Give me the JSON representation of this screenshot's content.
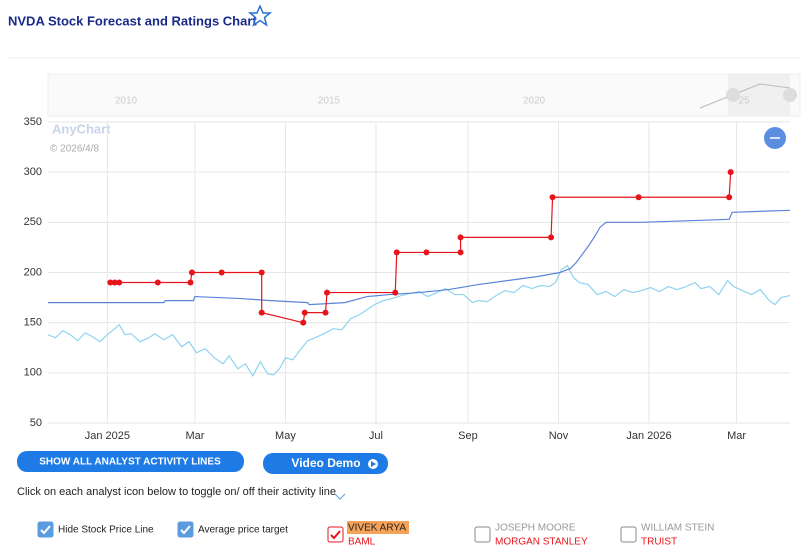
{
  "header": {
    "title": "NVDA Stock Forecast and Ratings Chart"
  },
  "navigator": {
    "labels": [
      "2010",
      "2015",
      "2020",
      "25"
    ]
  },
  "watermark": {
    "brand": "AnyChart",
    "date": "© 2026/4/8"
  },
  "chart_data": {
    "type": "line",
    "xlim": [
      0,
      500
    ],
    "xticks": [
      {
        "value": 40,
        "label": "Jan 2025"
      },
      {
        "value": 99,
        "label": "Mar"
      },
      {
        "value": 160,
        "label": "May"
      },
      {
        "value": 221,
        "label": "Jul"
      },
      {
        "value": 283,
        "label": "Sep"
      },
      {
        "value": 344,
        "label": "Nov"
      },
      {
        "value": 405,
        "label": "Jan 2026"
      },
      {
        "value": 464,
        "label": "Mar"
      }
    ],
    "ylim": [
      50,
      350
    ],
    "yticks": [
      50,
      100,
      150,
      200,
      250,
      300,
      350
    ],
    "grid": true,
    "series": [
      {
        "color": "#8fd3f0",
        "markers": false,
        "x": [
          0,
          5,
          10,
          15,
          20,
          25,
          30,
          35,
          40,
          45,
          48,
          52,
          56,
          62,
          68,
          72,
          78,
          84,
          90,
          95,
          100,
          106,
          112,
          118,
          122,
          128,
          133,
          138,
          143,
          148,
          152,
          156,
          160,
          165,
          170,
          175,
          180,
          186,
          192,
          198,
          204,
          210,
          216,
          220,
          226,
          232,
          238,
          244,
          250,
          256,
          262,
          268,
          274,
          280,
          286,
          290,
          296,
          302,
          308,
          314,
          320,
          326,
          332,
          338,
          342,
          346,
          350,
          354,
          358,
          364,
          370,
          376,
          382,
          388,
          394,
          400,
          406,
          412,
          418,
          424,
          430,
          436,
          440,
          446,
          452,
          458,
          462,
          468,
          474,
          480,
          486,
          490,
          494,
          500
        ],
        "values": [
          138,
          135,
          142,
          138,
          132,
          140,
          136,
          131,
          138,
          144,
          148,
          138,
          139,
          131,
          135,
          139,
          133,
          138,
          126,
          131,
          120,
          124,
          115,
          109,
          117,
          104,
          109,
          97,
          111,
          99,
          98,
          104,
          115,
          113,
          123,
          132,
          135,
          139,
          144,
          143,
          154,
          158,
          164,
          168,
          172,
          174,
          177,
          179,
          181,
          176,
          180,
          184,
          178,
          178,
          170,
          172,
          171,
          177,
          182,
          180,
          187,
          184,
          187,
          186,
          190,
          203,
          207,
          195,
          190,
          188,
          178,
          181,
          176,
          183,
          180,
          182,
          185,
          181,
          186,
          183,
          186,
          190,
          184,
          186,
          178,
          192,
          186,
          182,
          178,
          183,
          172,
          168,
          175,
          177
        ]
      },
      {
        "color": "#5b84d6",
        "markers": false,
        "x": [
          0,
          78,
          79,
          98,
          99,
          130,
          150,
          175,
          176,
          200,
          215,
          230,
          250,
          270,
          290,
          310,
          330,
          345,
          352,
          356,
          360,
          364,
          368,
          372,
          376,
          400,
          440,
          459,
          461,
          500
        ],
        "values": [
          170,
          170,
          172,
          172,
          176,
          174,
          172,
          170,
          168,
          170,
          176,
          178,
          180,
          183,
          188,
          192,
          196,
          200,
          204,
          210,
          218,
          226,
          235,
          245,
          250,
          250,
          252,
          253,
          260,
          262
        ]
      },
      {
        "color": "#e8141c",
        "markers": true,
        "x": [
          42,
          45,
          48,
          74,
          96,
          97,
          117,
          144,
          144,
          172,
          173,
          187,
          188,
          234,
          235,
          255,
          278,
          278,
          339,
          340,
          398,
          459,
          460
        ],
        "values": [
          190,
          190,
          190,
          190,
          190,
          200,
          200,
          200,
          160,
          150,
          160,
          160,
          180,
          180,
          220,
          220,
          220,
          235,
          235,
          275,
          275,
          275,
          300
        ]
      }
    ]
  },
  "controls": {
    "show_all": "SHOW ALL ANALYST ACTIVITY LINES",
    "video_demo": "Video Demo",
    "hint": "Click on each analyst icon below to toggle on/ off their activity line",
    "checkboxes": [
      {
        "label": "Hide Stock Price Line",
        "checked": true
      },
      {
        "label": "Average price target",
        "checked": true
      },
      {
        "label": "VIVEK ARYA",
        "firm": "BAML",
        "checked": true
      },
      {
        "label": "JOSEPH MOORE",
        "firm": "MORGAN STANLEY",
        "checked": false
      },
      {
        "label": "WILLIAM STEIN",
        "firm": "TRUIST",
        "checked": false
      }
    ]
  }
}
